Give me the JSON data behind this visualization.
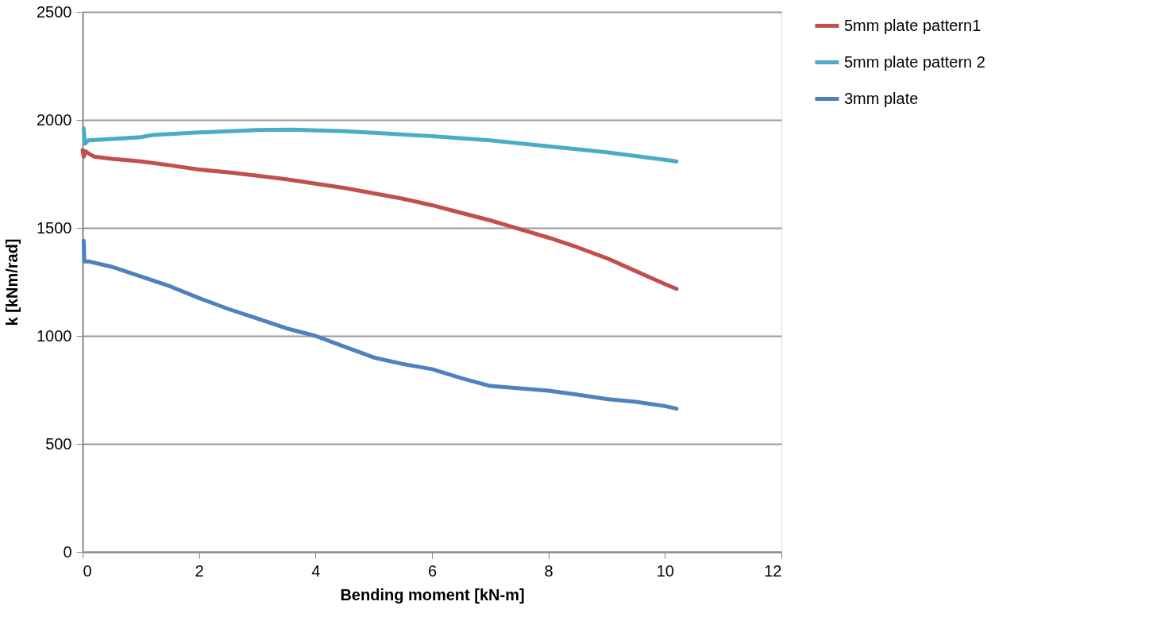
{
  "chart_data": {
    "type": "line",
    "xlabel": "Bending moment [kN-m]",
    "ylabel": "k [kNm/rad]",
    "xlim": [
      0,
      12
    ],
    "xticks": [
      0,
      2,
      4,
      6,
      8,
      10,
      12
    ],
    "ylim": [
      0,
      2500
    ],
    "yticks": [
      0,
      500,
      1000,
      1500,
      2000,
      2500
    ],
    "grid": "y",
    "legend": "right",
    "marker": "none",
    "line_style": "solid",
    "series": [
      {
        "name": "5mm plate pattern1",
        "color": "#c0504d",
        "x": [
          0.0,
          0.02,
          0.05,
          0.1,
          0.2,
          0.5,
          1,
          1.5,
          2,
          2.5,
          3,
          3.5,
          4,
          4.5,
          5,
          5.5,
          6,
          6.5,
          7,
          7.5,
          8,
          8.5,
          9,
          9.5,
          10,
          10.2
        ],
        "values": [
          1860,
          1830,
          1855,
          1845,
          1830,
          1820,
          1808,
          1790,
          1770,
          1757,
          1742,
          1725,
          1705,
          1685,
          1660,
          1635,
          1605,
          1570,
          1535,
          1495,
          1455,
          1410,
          1360,
          1300,
          1240,
          1218
        ]
      },
      {
        "name": "5mm plate pattern 2",
        "color": "#4bacc6",
        "x": [
          0.02,
          0.04,
          0.1,
          0.5,
          1,
          1.2,
          2,
          3,
          3.6,
          4.5,
          5,
          6,
          7,
          8,
          9,
          10,
          10.2
        ],
        "values": [
          1960,
          1890,
          1905,
          1912,
          1920,
          1930,
          1942,
          1953,
          1955,
          1948,
          1940,
          1925,
          1905,
          1878,
          1850,
          1815,
          1808
        ]
      },
      {
        "name": "3mm plate",
        "color": "#4f81bd",
        "x": [
          0.02,
          0.03,
          0.1,
          0.5,
          1,
          1.5,
          2,
          2.5,
          3,
          3.5,
          4,
          4.5,
          5,
          5.5,
          6,
          6.5,
          7,
          7.5,
          8,
          8.5,
          9,
          9.5,
          10,
          10.2
        ],
        "values": [
          1440,
          1345,
          1345,
          1320,
          1275,
          1230,
          1175,
          1125,
          1080,
          1035,
          1000,
          950,
          900,
          870,
          846,
          805,
          768,
          757,
          746,
          728,
          708,
          695,
          675,
          663
        ]
      }
    ]
  }
}
